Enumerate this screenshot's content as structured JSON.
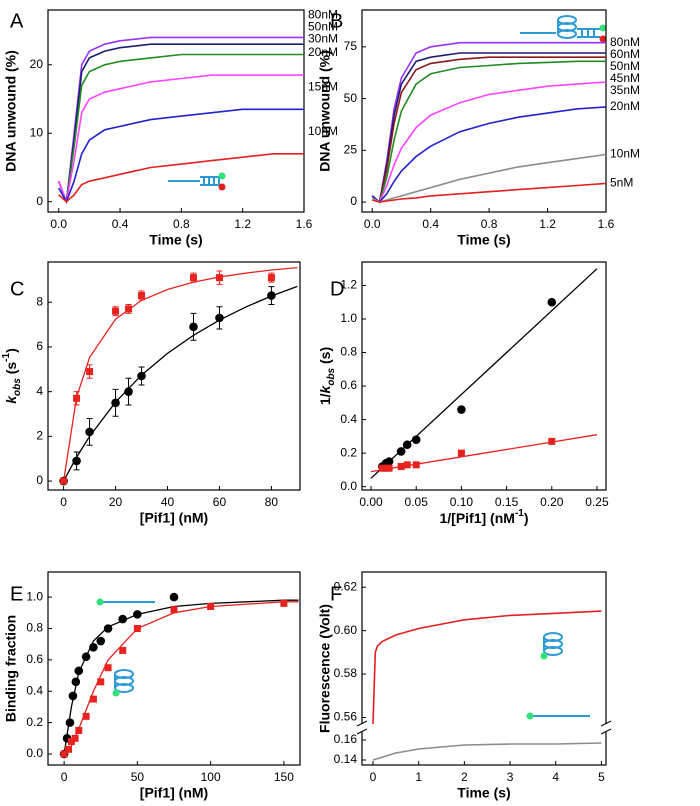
{
  "chart_data": [
    {
      "type": "line",
      "panel": "A",
      "xlabel": "Time (s)",
      "ylabel": "DNA unwound (%)",
      "x": [
        0,
        0.05,
        0.1,
        0.15,
        0.2,
        0.3,
        0.4,
        0.6,
        0.8,
        1.0,
        1.2,
        1.4,
        1.6
      ],
      "xlim": [
        -0.07,
        1.6
      ],
      "xticks": [
        {
          "value": 0,
          "label": "0.0"
        },
        0.4,
        0.8,
        1.2,
        1.6
      ],
      "ylim": [
        -1.5,
        28
      ],
      "yticks": [
        0,
        10,
        20
      ],
      "series": [
        {
          "name": "80nM",
          "color": "#9933ff",
          "values": [
            3,
            0,
            10,
            20,
            22,
            23,
            23.5,
            24,
            24,
            24,
            24,
            24,
            24
          ]
        },
        {
          "name": "50nM",
          "color": "#1c1c70",
          "values": [
            3,
            0,
            9,
            19,
            21,
            22,
            22.5,
            23,
            23,
            23,
            23,
            23,
            23
          ]
        },
        {
          "name": "30nM",
          "color": "#228b22",
          "values": [
            3,
            0,
            8,
            17,
            19,
            20,
            20.5,
            21,
            21.5,
            21.5,
            21.5,
            21.5,
            21.5
          ]
        },
        {
          "name": "20nM",
          "color": "#ff44ff",
          "values": [
            3,
            0,
            6,
            13,
            15,
            16,
            16.5,
            17.5,
            18,
            18.5,
            18.5,
            18.5,
            18.5
          ]
        },
        {
          "name": "15nM",
          "color": "#2222cc",
          "values": [
            2,
            0,
            3,
            7,
            9,
            10.5,
            11,
            12,
            12.5,
            13,
            13.5,
            13.5,
            13.5
          ]
        },
        {
          "name": "10nM",
          "color": "#e32020",
          "values": [
            1,
            0,
            1,
            2.5,
            3,
            3.5,
            4,
            5,
            5.5,
            6,
            6.5,
            7,
            7
          ]
        }
      ]
    },
    {
      "type": "line",
      "panel": "B",
      "xlabel": "Time (s)",
      "ylabel": "DNA unwound (%)",
      "x": [
        0,
        0.05,
        0.1,
        0.15,
        0.2,
        0.3,
        0.4,
        0.6,
        0.8,
        1.0,
        1.2,
        1.4,
        1.6
      ],
      "xlim": [
        -0.07,
        1.6
      ],
      "xticks": [
        {
          "value": 0,
          "label": "0.0"
        },
        0.4,
        0.8,
        1.2,
        1.6
      ],
      "ylim": [
        -4.8,
        92.8
      ],
      "yticks": [
        0,
        25,
        50,
        75
      ],
      "series": [
        {
          "name": "80nM",
          "color": "#9933ff",
          "values": [
            3,
            0,
            20,
            45,
            60,
            72,
            75,
            77,
            77,
            77,
            77,
            77,
            77
          ]
        },
        {
          "name": "60nM",
          "color": "#1c1c70",
          "values": [
            3,
            0,
            18,
            42,
            57,
            68,
            70,
            72,
            72,
            72,
            72,
            72,
            72
          ]
        },
        {
          "name": "50nM",
          "color": "#8b1a1a",
          "values": [
            3,
            0,
            16,
            38,
            53,
            64,
            67,
            69,
            70,
            70,
            70,
            70,
            70
          ]
        },
        {
          "name": "45nM",
          "color": "#228b22",
          "values": [
            3,
            0,
            12,
            30,
            44,
            57,
            62,
            65,
            66,
            67,
            67.5,
            68,
            68
          ]
        },
        {
          "name": "35nM",
          "color": "#ff44ff",
          "values": [
            3,
            0,
            8,
            18,
            26,
            36,
            42,
            48,
            52,
            54,
            56,
            57,
            58
          ]
        },
        {
          "name": "20nM",
          "color": "#2222cc",
          "values": [
            3,
            0,
            4,
            10,
            15,
            22,
            27,
            34,
            38,
            41,
            43,
            45,
            46
          ]
        },
        {
          "name": "10nM",
          "color": "#8c8c8c",
          "values": [
            2,
            0,
            1,
            2,
            3,
            5,
            7,
            11,
            14,
            17,
            19,
            21,
            23
          ]
        },
        {
          "name": "5nM",
          "color": "#e32020",
          "values": [
            1,
            0,
            0.5,
            1,
            1.5,
            2,
            3,
            4,
            5,
            6,
            7,
            8,
            9
          ]
        }
      ]
    },
    {
      "type": "scatter",
      "panel": "C",
      "xlabel": "[Pif1] (nM)",
      "ylabel": [
        "k",
        "obs",
        " (s",
        "-1",
        ")"
      ],
      "xlim": [
        -6,
        91
      ],
      "xticks": [
        0,
        20,
        40,
        60,
        80
      ],
      "ylim": [
        -0.4,
        9.8
      ],
      "yticks": [
        0,
        2,
        4,
        6,
        8
      ],
      "series": [
        {
          "color": "#000000",
          "marker": "circle",
          "x": [
            0,
            5,
            10,
            20,
            25,
            30,
            50,
            60,
            80
          ],
          "values": [
            0,
            0.9,
            2.2,
            3.5,
            4.0,
            4.7,
            6.9,
            7.3,
            8.3
          ],
          "errors": [
            0,
            0.4,
            0.6,
            0.6,
            0.6,
            0.4,
            0.6,
            0.5,
            0.4
          ]
        },
        {
          "color": "#e8231f",
          "marker": "square",
          "x": [
            0,
            5,
            10,
            20,
            25,
            30,
            50,
            60,
            80
          ],
          "values": [
            0,
            3.7,
            4.9,
            7.6,
            7.7,
            8.3,
            9.1,
            9.1,
            9.1
          ],
          "errors": [
            0,
            0.3,
            0.3,
            0.2,
            0.2,
            0.2,
            0.2,
            0.3,
            0.2
          ]
        }
      ],
      "fits": [
        {
          "color": "#000000",
          "x": [
            0,
            5,
            10,
            20,
            30,
            40,
            50,
            60,
            70,
            80,
            90
          ],
          "values": [
            0,
            1.07,
            2.0,
            3.53,
            4.74,
            5.71,
            6.52,
            7.2,
            7.78,
            8.28,
            8.71
          ]
        },
        {
          "color": "#e8231f",
          "x": [
            0,
            5,
            10,
            20,
            30,
            40,
            50,
            60,
            70,
            80,
            90
          ],
          "values": [
            0,
            3.75,
            5.53,
            7.24,
            8.08,
            8.57,
            8.9,
            9.13,
            9.3,
            9.44,
            9.55
          ]
        }
      ]
    },
    {
      "type": "scatter",
      "panel": "D",
      "xlabel": [
        "1/[Pif1] (nM",
        "-1",
        ")"
      ],
      "ylabel": [
        "1/",
        "k",
        "obs",
        " (s)"
      ],
      "xlim": [
        -0.01,
        0.26
      ],
      "xticks": [
        {
          "value": 0,
          "label": "0.00"
        },
        0.05,
        {
          "value": 0.1,
          "label": "0.10"
        },
        0.15,
        {
          "value": 0.2,
          "label": "0.20"
        },
        0.25
      ],
      "ylim": [
        -0.02,
        1.34
      ],
      "yticks": [
        {
          "value": 0,
          "label": "0.0"
        },
        0.2,
        0.4,
        0.6,
        0.8,
        {
          "value": 1,
          "label": "1.0"
        },
        1.2
      ],
      "series": [
        {
          "color": "#000000",
          "marker": "circle",
          "x": [
            0.0125,
            0.0167,
            0.02,
            0.0333,
            0.04,
            0.05,
            0.1,
            0.2
          ],
          "values": [
            0.12,
            0.14,
            0.15,
            0.21,
            0.25,
            0.28,
            0.46,
            1.1
          ]
        },
        {
          "color": "#e8231f",
          "marker": "square",
          "x": [
            0.0125,
            0.0167,
            0.02,
            0.0333,
            0.04,
            0.05,
            0.1,
            0.2
          ],
          "values": [
            0.11,
            0.11,
            0.11,
            0.12,
            0.13,
            0.13,
            0.2,
            0.27
          ]
        }
      ],
      "fits": [
        {
          "color": "#000000",
          "x": [
            0,
            0.25
          ],
          "values": [
            0.05,
            1.3
          ]
        },
        {
          "color": "#e8231f",
          "x": [
            0,
            0.25
          ],
          "values": [
            0.09,
            0.31
          ]
        }
      ]
    },
    {
      "type": "scatter",
      "panel": "E",
      "xlabel": "[Pif1] (nM)",
      "ylabel": "Binding fraction",
      "xlim": [
        -11,
        161
      ],
      "xticks": [
        0,
        50,
        100,
        150
      ],
      "ylim": [
        -0.07,
        1.16
      ],
      "yticks": [
        {
          "value": 0,
          "label": "0.0"
        },
        0.2,
        0.4,
        0.6,
        0.8,
        {
          "value": 1,
          "label": "1.0"
        }
      ],
      "series": [
        {
          "color": "#000000",
          "marker": "circle",
          "x": [
            0,
            2,
            4,
            6,
            8,
            10,
            15,
            20,
            25,
            30,
            40,
            50,
            75
          ],
          "values": [
            0,
            0.1,
            0.2,
            0.37,
            0.46,
            0.53,
            0.62,
            0.68,
            0.72,
            0.8,
            0.86,
            0.89,
            1.0
          ]
        },
        {
          "color": "#e8231f",
          "marker": "square",
          "x": [
            0,
            3,
            5,
            7.5,
            10,
            15,
            20,
            25,
            30,
            40,
            50,
            75,
            100,
            150
          ],
          "values": [
            0,
            0.03,
            0.08,
            0.1,
            0.15,
            0.24,
            0.35,
            0.46,
            0.55,
            0.66,
            0.8,
            0.92,
            0.94,
            0.96
          ]
        }
      ],
      "fits": [
        {
          "color": "#000000",
          "x": [
            0,
            5,
            10,
            20,
            30,
            50,
            75,
            100,
            150,
            160
          ],
          "values": [
            0,
            0.3,
            0.52,
            0.72,
            0.81,
            0.89,
            0.94,
            0.96,
            0.98,
            0.98
          ]
        },
        {
          "color": "#e8231f",
          "x": [
            0,
            5,
            10,
            20,
            30,
            50,
            75,
            100,
            150,
            160
          ],
          "values": [
            0,
            0.05,
            0.16,
            0.4,
            0.6,
            0.8,
            0.9,
            0.94,
            0.97,
            0.97
          ]
        }
      ]
    },
    {
      "type": "line",
      "panel": "F",
      "xlabel": "Time (s)",
      "ylabel": "Fluorescence (Volt)",
      "xlim": [
        -0.24,
        5.1
      ],
      "xticks": [
        0,
        1,
        2,
        3,
        4,
        5
      ],
      "ylim": [
        0.557,
        0.627
      ],
      "yticks": [
        0.56,
        0.58,
        {
          "value": 0.6,
          "label": "0.60"
        },
        0.62
      ],
      "y2lim": [
        0.135,
        0.169
      ],
      "y2ticks": [
        0.14,
        0.16
      ],
      "series": [
        {
          "color": "#e32020",
          "x": [
            0,
            0.05,
            0.1,
            0.2,
            0.5,
            1,
            1.5,
            2,
            3,
            4,
            5
          ],
          "values": [
            0.557,
            0.59,
            0.593,
            0.595,
            0.598,
            0.601,
            0.603,
            0.605,
            0.607,
            0.608,
            0.609
          ]
        },
        {
          "color": "#8c8c8c",
          "axis": "y2",
          "x": [
            0,
            0.5,
            1,
            1.5,
            2,
            3,
            4,
            5
          ],
          "values": [
            0.14,
            0.147,
            0.151,
            0.153,
            0.155,
            0.156,
            0.156,
            0.157
          ]
        }
      ]
    }
  ]
}
